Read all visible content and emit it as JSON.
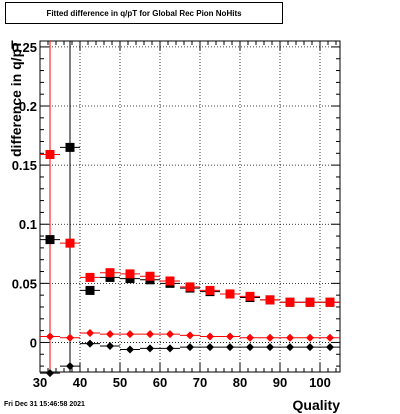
{
  "chart_data": {
    "type": "scatter",
    "title": "Fitted difference in q/pT for Global Rec Pion NoHits",
    "xlabel": "Quality",
    "ylabel": "difference in q/pT",
    "xlim": [
      30,
      105
    ],
    "ylim": [
      -0.025,
      0.255
    ],
    "x_ticks": [
      30,
      40,
      50,
      60,
      70,
      80,
      90,
      100
    ],
    "y_ticks": [
      0,
      0.05,
      0.1,
      0.15,
      0.2,
      0.25
    ],
    "y_tick_labels": [
      "0",
      "0.05",
      "0.1",
      "0.15",
      "0.2",
      "0.25"
    ],
    "grid": true,
    "bin_half_width": 2.5,
    "series": [
      {
        "color": "#000000",
        "marker": "square",
        "large": true,
        "x": [
          32.5,
          37.5,
          42.5,
          47.5,
          52.5,
          57.5,
          62.5,
          67.5,
          72.5,
          77.5,
          82.5,
          87.5,
          92.5,
          97.5,
          102.5
        ],
        "y": [
          0.087,
          0.165,
          0.044,
          0.055,
          0.054,
          0.053,
          0.05,
          0.046,
          0.043,
          0.041,
          0.038,
          0.036,
          0.034,
          0.034,
          0.034
        ]
      },
      {
        "color": "#ff0000",
        "marker": "square",
        "large": true,
        "x": [
          32.5,
          37.5,
          42.5,
          47.5,
          52.5,
          57.5,
          62.5,
          67.5,
          72.5,
          77.5,
          82.5,
          87.5,
          92.5,
          97.5,
          102.5
        ],
        "y": [
          0.159,
          0.084,
          0.055,
          0.059,
          0.058,
          0.056,
          0.052,
          0.047,
          0.044,
          0.041,
          0.039,
          0.036,
          0.034,
          0.034,
          0.034
        ]
      },
      {
        "color": "#ff0000",
        "marker": "diamond",
        "large": false,
        "x": [
          32.5,
          37.5,
          42.5,
          47.5,
          52.5,
          57.5,
          62.5,
          67.5,
          72.5,
          77.5,
          82.5,
          87.5,
          92.5,
          97.5,
          102.5
        ],
        "y": [
          0.005,
          0.004,
          0.008,
          0.007,
          0.007,
          0.007,
          0.007,
          0.006,
          0.005,
          0.005,
          0.004,
          0.004,
          0.004,
          0.004,
          0.004
        ]
      },
      {
        "color": "#000000",
        "marker": "diamond",
        "large": false,
        "x": [
          32.5,
          37.5,
          42.5,
          47.5,
          52.5,
          57.5,
          62.5,
          67.5,
          72.5,
          77.5,
          82.5,
          87.5,
          92.5,
          97.5,
          102.5
        ],
        "y": [
          -0.026,
          -0.02,
          -0.001,
          -0.003,
          -0.006,
          -0.005,
          -0.005,
          -0.004,
          -0.004,
          -0.004,
          -0.004,
          -0.004,
          -0.004,
          -0.004,
          -0.004
        ]
      }
    ],
    "error_bars": [
      {
        "color": "#ff0000",
        "x": 32.5,
        "y_low": -0.025,
        "y_high": 0.255
      },
      {
        "color": "#ff0000",
        "x": 37.5,
        "y_low": -0.025,
        "y_high": 0.165
      },
      {
        "color": "#000000",
        "x": 37.5,
        "y_low": -0.025,
        "y_high": 0.255
      }
    ]
  },
  "footer": {
    "datestamp": "Fri Dec 31 15:46:58 2021"
  }
}
